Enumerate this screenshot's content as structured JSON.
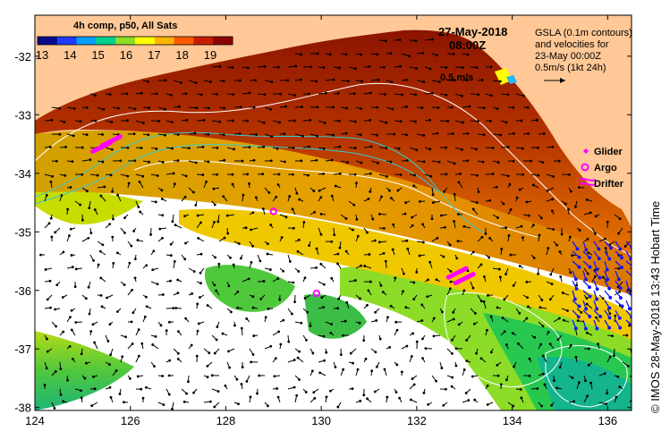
{
  "map": {
    "title": "4h comp, p50, All Sats",
    "date": "27-May-2018",
    "time": "08:00Z",
    "info_lines": [
      "GSLA (0.1m contours)",
      "and velocities for",
      "23-May 00:00Z",
      "0.5m/s (1kt 24h)"
    ],
    "vector_scale_label": "0.5 m/s",
    "side_label": "© IMOS 28-May-2018 13:43 Hobart Time",
    "colorbar": {
      "ticks": [
        "13",
        "14",
        "15",
        "16",
        "17",
        "18",
        "19"
      ],
      "colors": [
        "#0a0a8c",
        "#1e3cff",
        "#00a0ff",
        "#00d08c",
        "#8cdc28",
        "#ffff00",
        "#ffb400",
        "#ff5a00",
        "#c81e00",
        "#8c0000"
      ]
    },
    "x_ticks": [
      "124",
      "126",
      "128",
      "130",
      "132",
      "134",
      "136"
    ],
    "y_ticks": [
      "-32",
      "-33",
      "-34",
      "-35",
      "-36",
      "-37",
      "-38"
    ],
    "x_range": [
      124,
      136.5
    ],
    "y_range": [
      -38.05,
      -31.3
    ],
    "legend": [
      {
        "name": "Glider",
        "marker": "diamond"
      },
      {
        "name": "Argo",
        "marker": "circle"
      },
      {
        "name": "Drifter",
        "marker": "drifter"
      }
    ],
    "colors": {
      "land": "#ffc896",
      "warm": "#a01e00",
      "marker": "#ff00ff",
      "contour": "#ffffff",
      "eddy_arrows": "#1414ff"
    },
    "markers": {
      "gliders": [
        [
          125.4,
          -33.55
        ],
        [
          125.6,
          -33.45
        ],
        [
          132.85,
          -35.7
        ],
        [
          133.0,
          -35.8
        ]
      ],
      "argo": [
        [
          129.0,
          -34.65
        ],
        [
          129.9,
          -36.05
        ]
      ]
    }
  }
}
